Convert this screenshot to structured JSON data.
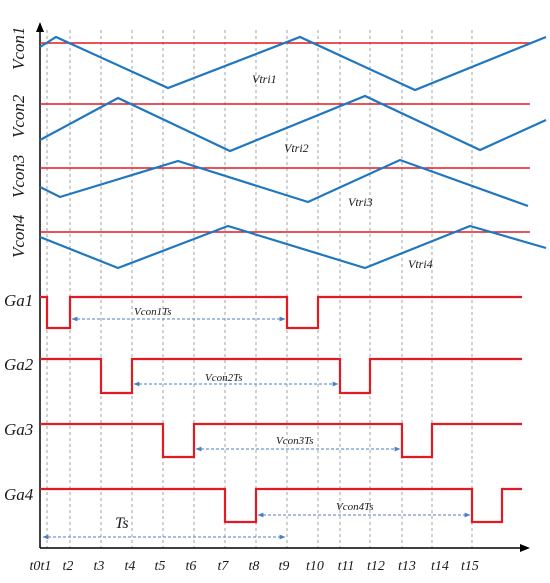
{
  "colors": {
    "triangle": "#1f77c0",
    "threshold": "#e01b24",
    "gate": "#e01b24",
    "arrow": "#4a7fc1",
    "gridline": "#8c8c8c",
    "axis": "#000000"
  },
  "signals": [
    {
      "label": "Vcon1",
      "tri_label": "Vtri1",
      "gate_label": "Ga1",
      "duration_label": "Vcon1Ts"
    },
    {
      "label": "Vcon2",
      "tri_label": "Vtri2",
      "gate_label": "Ga2",
      "duration_label": "Vcon2Ts"
    },
    {
      "label": "Vcon3",
      "tri_label": "Vtri3",
      "gate_label": "Ga3",
      "duration_label": "Vcon3Ts"
    },
    {
      "label": "Vcon4",
      "tri_label": "Vtri4",
      "gate_label": "Ga4",
      "duration_label": "Vcon4Ts"
    }
  ],
  "period_label": "Ts",
  "time_labels": [
    "t0",
    "t1",
    "t2",
    "t3",
    "t4",
    "t5",
    "t6",
    "t7",
    "t8",
    "t9",
    "t10",
    "t11",
    "t12",
    "t13",
    "t14",
    "t15"
  ]
}
